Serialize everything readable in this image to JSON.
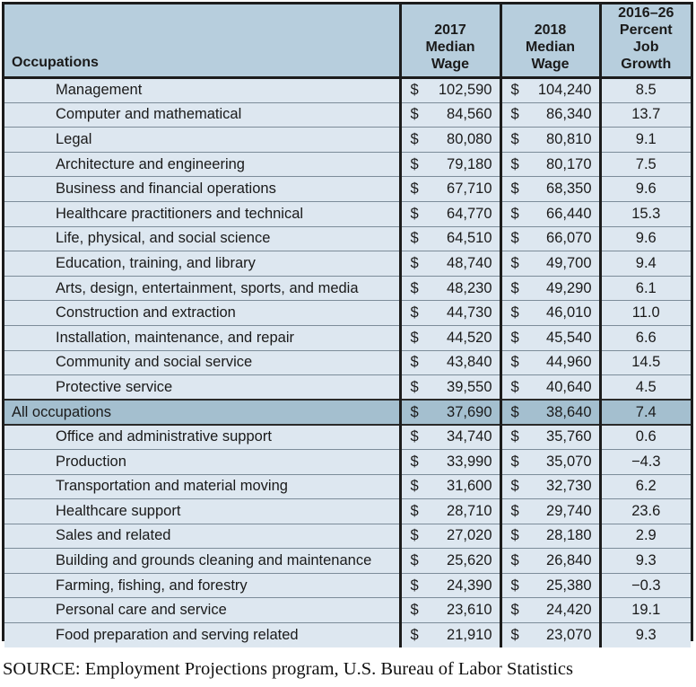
{
  "table": {
    "headers": {
      "occupation": "Occupations",
      "wage_2017": [
        "2017",
        "Median",
        "Wage"
      ],
      "wage_2018": [
        "2018",
        "Median",
        "Wage"
      ],
      "growth": [
        "2016–26",
        "Percent Job",
        "Growth"
      ]
    },
    "currency": "$",
    "rows": [
      {
        "occupation": "Management",
        "wage_2017": "102,590",
        "wage_2018": "104,240",
        "growth": "8.5"
      },
      {
        "occupation": "Computer and mathematical",
        "wage_2017": "84,560",
        "wage_2018": "86,340",
        "growth": "13.7"
      },
      {
        "occupation": "Legal",
        "wage_2017": "80,080",
        "wage_2018": "80,810",
        "growth": "9.1"
      },
      {
        "occupation": "Architecture and engineering",
        "wage_2017": "79,180",
        "wage_2018": "80,170",
        "growth": "7.5"
      },
      {
        "occupation": "Business and financial operations",
        "wage_2017": "67,710",
        "wage_2018": "68,350",
        "growth": "9.6"
      },
      {
        "occupation": "Healthcare practitioners and technical",
        "wage_2017": "64,770",
        "wage_2018": "66,440",
        "growth": "15.3"
      },
      {
        "occupation": "Life, physical, and social science",
        "wage_2017": "64,510",
        "wage_2018": "66,070",
        "growth": "9.6"
      },
      {
        "occupation": "Education, training, and library",
        "wage_2017": "48,740",
        "wage_2018": "49,700",
        "growth": "9.4"
      },
      {
        "occupation": "Arts, design, entertainment, sports, and media",
        "wage_2017": "48,230",
        "wage_2018": "49,290",
        "growth": "6.1"
      },
      {
        "occupation": "Construction and extraction",
        "wage_2017": "44,730",
        "wage_2018": "46,010",
        "growth": "11.0"
      },
      {
        "occupation": "Installation, maintenance, and repair",
        "wage_2017": "44,520",
        "wage_2018": "45,540",
        "growth": "6.6"
      },
      {
        "occupation": "Community and social service",
        "wage_2017": "43,840",
        "wage_2018": "44,960",
        "growth": "14.5"
      },
      {
        "occupation": "Protective service",
        "wage_2017": "39,550",
        "wage_2018": "40,640",
        "growth": "4.5"
      },
      {
        "occupation": "All occupations",
        "wage_2017": "37,690",
        "wage_2018": "38,640",
        "growth": "7.4",
        "total": true
      },
      {
        "occupation": "Office and administrative support",
        "wage_2017": "34,740",
        "wage_2018": "35,760",
        "growth": "0.6"
      },
      {
        "occupation": "Production",
        "wage_2017": "33,990",
        "wage_2018": "35,070",
        "growth": "−4.3"
      },
      {
        "occupation": "Transportation and material moving",
        "wage_2017": "31,600",
        "wage_2018": "32,730",
        "growth": "6.2"
      },
      {
        "occupation": "Healthcare support",
        "wage_2017": "28,710",
        "wage_2018": "29,740",
        "growth": "23.6"
      },
      {
        "occupation": "Sales and related",
        "wage_2017": "27,020",
        "wage_2018": "28,180",
        "growth": "2.9"
      },
      {
        "occupation": "Building and grounds cleaning and maintenance",
        "wage_2017": "25,620",
        "wage_2018": "26,840",
        "growth": "9.3"
      },
      {
        "occupation": "Farming, fishing, and forestry",
        "wage_2017": "24,390",
        "wage_2018": "25,380",
        "growth": "−0.3"
      },
      {
        "occupation": "Personal care and service",
        "wage_2017": "23,610",
        "wage_2018": "24,420",
        "growth": "19.1"
      },
      {
        "occupation": "Food preparation and serving related",
        "wage_2017": "21,910",
        "wage_2018": "23,070",
        "growth": "9.3"
      }
    ]
  },
  "source": "SOURCE: Employment Projections program, U.S. Bureau of Labor Statistics",
  "colors": {
    "header_bg": "#b7cedd",
    "row_bg": "#dde7f0",
    "total_row_bg": "#a4bfcf",
    "border": "#1c1c1c"
  }
}
